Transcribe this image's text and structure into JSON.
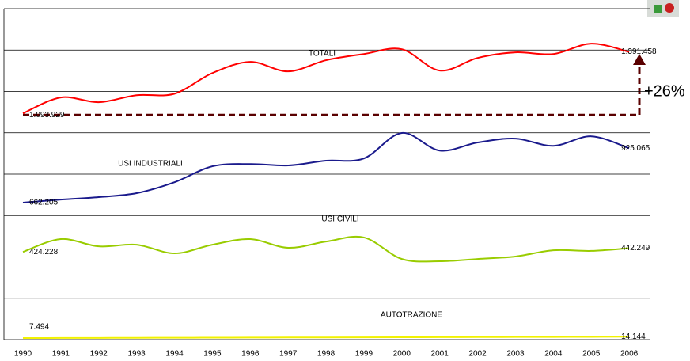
{
  "chart_data": {
    "type": "line",
    "categories": [
      "1990",
      "1991",
      "1992",
      "1993",
      "1994",
      "1995",
      "1996",
      "1997",
      "1998",
      "1999",
      "2000",
      "2001",
      "2002",
      "2003",
      "2004",
      "2005",
      "2006"
    ],
    "series": [
      {
        "name": "TOTALI",
        "color": "#ff0000",
        "values": [
          1093929,
          1171000,
          1148000,
          1182000,
          1189000,
          1289000,
          1343000,
          1297000,
          1351000,
          1381000,
          1404000,
          1301000,
          1362000,
          1389000,
          1381000,
          1431000,
          1391458
        ],
        "value_labels": [
          "1.093.929",
          null,
          null,
          null,
          null,
          null,
          null,
          null,
          null,
          null,
          null,
          null,
          null,
          null,
          null,
          null,
          "1.391.458"
        ]
      },
      {
        "name": "USI INDUSTRIALI",
        "color": "#1a1a8c",
        "values": [
          662205,
          677000,
          689000,
          708000,
          761000,
          838000,
          849000,
          842000,
          865000,
          876000,
          999000,
          914000,
          953000,
          972000,
          937000,
          983000,
          925065
        ],
        "value_labels": [
          "662.205",
          null,
          null,
          null,
          null,
          null,
          null,
          null,
          null,
          null,
          null,
          null,
          null,
          null,
          null,
          null,
          "925.065"
        ]
      },
      {
        "name": "USI CIVILI",
        "color": "#99cc00",
        "values": [
          424228,
          486000,
          451000,
          459000,
          417000,
          459000,
          486000,
          444000,
          474000,
          494000,
          390000,
          379000,
          390000,
          402000,
          432000,
          429000,
          442249
        ],
        "value_labels": [
          "424.228",
          null,
          null,
          null,
          null,
          null,
          null,
          null,
          null,
          null,
          null,
          null,
          null,
          null,
          null,
          null,
          "442.249"
        ]
      },
      {
        "name": "AUTOTRAZIONE",
        "color": "#f2f200",
        "values": [
          7494,
          7900,
          8300,
          8700,
          9100,
          9500,
          9900,
          10300,
          10700,
          11100,
          11500,
          11900,
          12300,
          12700,
          13100,
          13600,
          14144
        ],
        "value_labels": [
          "7.494",
          null,
          null,
          null,
          null,
          null,
          null,
          null,
          null,
          null,
          null,
          null,
          null,
          null,
          null,
          null,
          "14.144"
        ]
      }
    ],
    "annotation": "+26%",
    "ylim": [
      0,
      1600000
    ],
    "yticks": [
      0,
      200000,
      400000,
      600000,
      800000,
      1000000,
      1200000,
      1400000,
      1600000
    ],
    "grid": true
  }
}
